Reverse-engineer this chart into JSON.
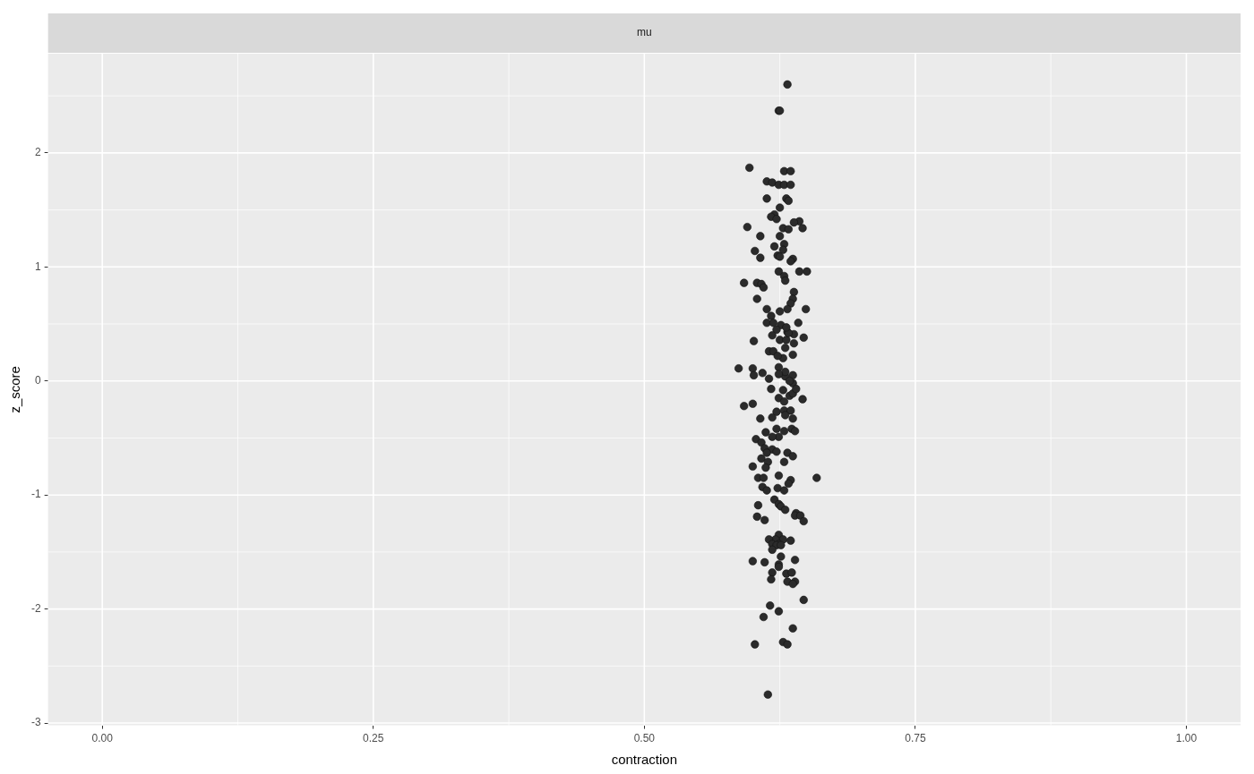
{
  "chart_data": {
    "type": "scatter",
    "title": "mu",
    "xlabel": "contraction",
    "ylabel": "z_score",
    "xlim": [
      -0.05,
      1.05
    ],
    "ylim": [
      -3.02,
      2.87
    ],
    "xticks": [
      {
        "value": 0,
        "label": "0.00"
      },
      {
        "value": 0.25,
        "label": "0.25"
      },
      {
        "value": 0.5,
        "label": "0.50"
      },
      {
        "value": 0.75,
        "label": "0.75"
      },
      {
        "value": 1,
        "label": "1.00"
      }
    ],
    "yticks": [
      -3,
      -2,
      -1,
      0,
      1,
      2
    ],
    "grid": true,
    "legend": false,
    "marker": "circle",
    "series": [
      {
        "color": "#2b2b2b",
        "x": [
          0.632,
          0.624,
          0.625,
          0.597,
          0.629,
          0.635,
          0.613,
          0.618,
          0.624,
          0.629,
          0.635,
          0.613,
          0.631,
          0.633,
          0.625,
          0.62,
          0.617,
          0.622,
          0.628,
          0.595,
          0.607,
          0.625,
          0.633,
          0.602,
          0.629,
          0.62,
          0.628,
          0.607,
          0.623,
          0.625,
          0.637,
          0.635,
          0.643,
          0.638,
          0.646,
          0.592,
          0.604,
          0.624,
          0.629,
          0.643,
          0.65,
          0.649,
          0.604,
          0.608,
          0.61,
          0.63,
          0.638,
          0.637,
          0.635,
          0.613,
          0.617,
          0.625,
          0.632,
          0.613,
          0.619,
          0.626,
          0.632,
          0.638,
          0.622,
          0.618,
          0.625,
          0.631,
          0.63,
          0.638,
          0.615,
          0.619,
          0.628,
          0.623,
          0.647,
          0.637,
          0.601,
          0.633,
          0.631,
          0.642,
          0.624,
          0.63,
          0.63,
          0.637,
          0.637,
          0.587,
          0.6,
          0.601,
          0.609,
          0.615,
          0.624,
          0.634,
          0.646,
          0.617,
          0.628,
          0.624,
          0.634,
          0.637,
          0.64,
          0.629,
          0.592,
          0.6,
          0.607,
          0.618,
          0.622,
          0.629,
          0.635,
          0.63,
          0.637,
          0.636,
          0.639,
          0.629,
          0.624,
          0.618,
          0.612,
          0.622,
          0.603,
          0.608,
          0.611,
          0.618,
          0.613,
          0.608,
          0.614,
          0.622,
          0.632,
          0.637,
          0.629,
          0.6,
          0.612,
          0.605,
          0.61,
          0.624,
          0.635,
          0.633,
          0.623,
          0.609,
          0.613,
          0.629,
          0.62,
          0.624,
          0.605,
          0.626,
          0.63,
          0.64,
          0.639,
          0.644,
          0.647,
          0.604,
          0.611,
          0.624,
          0.628,
          0.621,
          0.615,
          0.618,
          0.624,
          0.635,
          0.622,
          0.626,
          0.618,
          0.6,
          0.611,
          0.626,
          0.624,
          0.639,
          0.618,
          0.624,
          0.631,
          0.636,
          0.632,
          0.639,
          0.617,
          0.637,
          0.647,
          0.616,
          0.624,
          0.61,
          0.637,
          0.602,
          0.628,
          0.632,
          0.614,
          0.659
        ],
        "values": [
          2.6,
          2.37,
          2.37,
          1.87,
          1.84,
          1.84,
          1.75,
          1.74,
          1.72,
          1.72,
          1.72,
          1.6,
          1.6,
          1.58,
          1.52,
          1.46,
          1.44,
          1.42,
          1.34,
          1.35,
          1.27,
          1.27,
          1.33,
          1.14,
          1.2,
          1.18,
          1.15,
          1.08,
          1.1,
          1.09,
          1.07,
          1.05,
          1.4,
          1.39,
          1.34,
          0.86,
          0.72,
          0.96,
          0.92,
          0.96,
          0.96,
          0.63,
          0.86,
          0.85,
          0.82,
          0.88,
          0.78,
          0.72,
          0.68,
          0.63,
          0.57,
          0.61,
          0.63,
          0.51,
          0.51,
          0.49,
          0.43,
          0.41,
          0.45,
          0.4,
          0.36,
          0.36,
          0.29,
          0.33,
          0.26,
          0.26,
          0.2,
          0.22,
          0.38,
          0.23,
          0.35,
          0.42,
          0.47,
          0.51,
          0.12,
          0.04,
          0.08,
          0.05,
          -0.02,
          0.11,
          0.11,
          0.05,
          0.07,
          0.02,
          0.06,
          0,
          -0.16,
          -0.07,
          -0.08,
          -0.15,
          -0.13,
          -0.11,
          -0.07,
          -0.18,
          -0.22,
          -0.2,
          -0.33,
          -0.32,
          -0.27,
          -0.26,
          -0.26,
          -0.3,
          -0.33,
          -0.42,
          -0.44,
          -0.44,
          -0.49,
          -0.49,
          -0.45,
          -0.42,
          -0.51,
          -0.54,
          -0.59,
          -0.6,
          -0.63,
          -0.68,
          -0.71,
          -0.62,
          -0.63,
          -0.66,
          -0.71,
          -0.75,
          -0.76,
          -0.85,
          -0.85,
          -0.83,
          -0.87,
          -0.9,
          -0.94,
          -0.93,
          -0.96,
          -0.96,
          -1.04,
          -1.08,
          -1.09,
          -1.1,
          -1.13,
          -1.16,
          -1.18,
          -1.18,
          -1.23,
          -1.19,
          -1.22,
          -1.35,
          -1.39,
          -1.39,
          -1.39,
          -1.43,
          -1.43,
          -1.4,
          -1.44,
          -1.44,
          -1.48,
          -1.58,
          -1.59,
          -1.54,
          -1.61,
          -1.57,
          -1.68,
          -1.63,
          -1.69,
          -1.68,
          -1.76,
          -1.76,
          -1.74,
          -1.78,
          -1.92,
          -1.97,
          -2.02,
          -2.07,
          -2.17,
          -2.31,
          -2.29,
          -2.31,
          -2.75,
          -0.85
        ]
      }
    ]
  }
}
